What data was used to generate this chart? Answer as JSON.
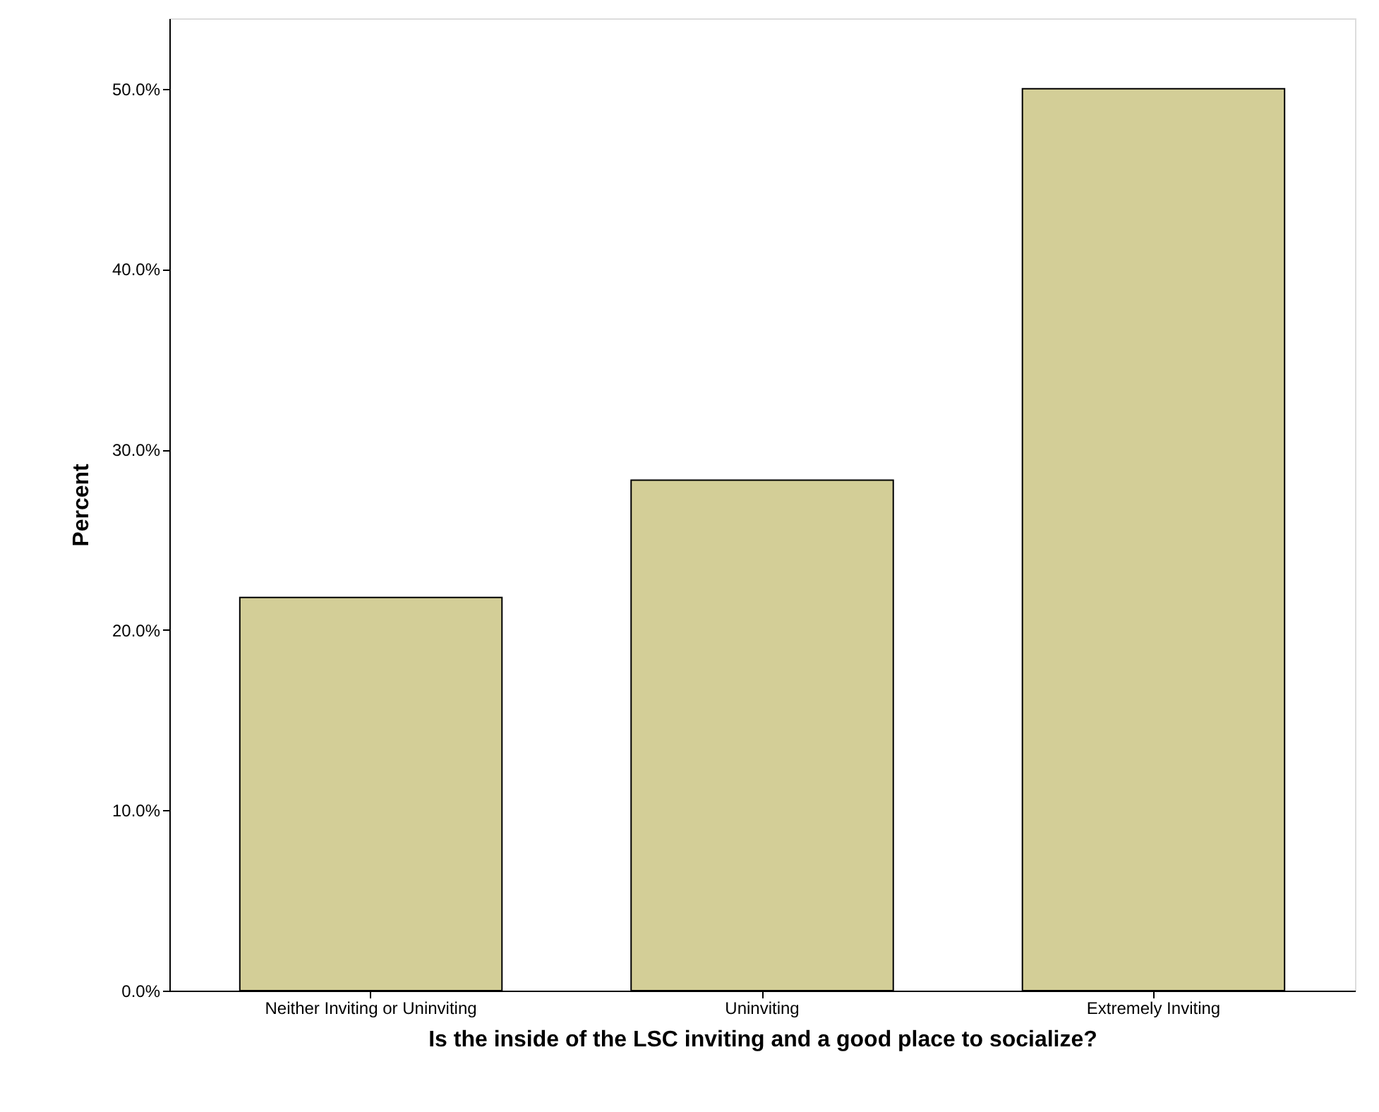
{
  "chart_data": {
    "type": "bar",
    "xlabel": "Is the inside of the LSC inviting and a good place to socialize?",
    "ylabel": "Percent",
    "categories": [
      "Neither Inviting or Uninviting",
      "Uninviting",
      "Extremely Inviting"
    ],
    "values": [
      21.8,
      28.3,
      50.0
    ],
    "color": "#d3ce97",
    "ylim": [
      0,
      53.9
    ],
    "yticks": [
      {
        "value": 0,
        "label": "0.0%"
      },
      {
        "value": 10,
        "label": "10.0%"
      },
      {
        "value": 20,
        "label": "20.0%"
      },
      {
        "value": 30,
        "label": "30.0%"
      },
      {
        "value": 40,
        "label": "40.0%"
      },
      {
        "value": 50,
        "label": "50.0%"
      }
    ],
    "grid": false
  }
}
